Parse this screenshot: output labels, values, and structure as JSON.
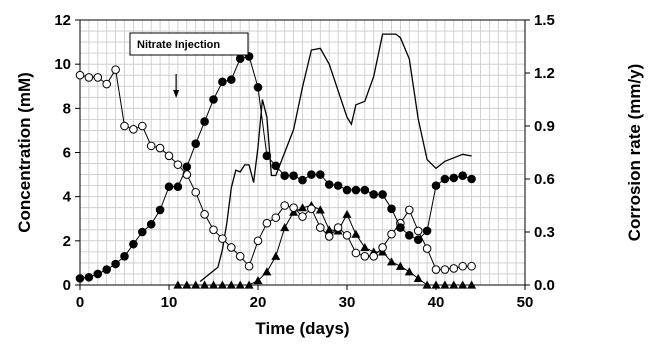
{
  "chart_data": {
    "type": "line",
    "xlabel": "Time (days)",
    "ylabel": "Concentration (mM)",
    "y2label": "Corrosion rate (mm/y)",
    "xlim": [
      0,
      50
    ],
    "ylim": [
      0,
      12
    ],
    "y2lim": [
      0,
      1.5
    ],
    "xticks": [
      0,
      10,
      20,
      30,
      40,
      50
    ],
    "yticks": [
      0,
      2,
      4,
      6,
      8,
      10,
      12
    ],
    "y2ticks": [
      "0.0",
      "0.3",
      "0.6",
      "0.9",
      "1.2",
      "1.5"
    ],
    "grid": true,
    "annotation": {
      "text": "Nitrate Injection",
      "arrow_x": 10.8
    },
    "series": [
      {
        "marker": "filled-circle",
        "axis": "left",
        "x": [
          0,
          1,
          2,
          3,
          4,
          5,
          6,
          7,
          8,
          9,
          10,
          11,
          12,
          13,
          14,
          15,
          16,
          17,
          18,
          19,
          20,
          21,
          22,
          23,
          24,
          25,
          26,
          27,
          28,
          29,
          30,
          31,
          32,
          33,
          34,
          35,
          36,
          37,
          38,
          39,
          40,
          41,
          42,
          43,
          44
        ],
        "y": [
          0.3,
          0.35,
          0.5,
          0.7,
          0.95,
          1.3,
          1.85,
          2.4,
          2.75,
          3.4,
          4.45,
          4.45,
          5.35,
          6.4,
          7.4,
          8.4,
          9.2,
          9.3,
          10.25,
          10.35,
          8.95,
          5.85,
          5.4,
          4.95,
          4.95,
          4.75,
          5.0,
          5.0,
          4.55,
          4.5,
          4.3,
          4.3,
          4.3,
          4.1,
          4.1,
          3.45,
          2.6,
          2.25,
          2.05,
          2.45,
          4.5,
          4.8,
          4.85,
          4.95,
          4.8
        ]
      },
      {
        "marker": "open-circle",
        "axis": "left",
        "x": [
          0,
          1,
          2,
          3,
          4,
          5,
          6,
          7,
          8,
          9,
          10,
          11,
          12,
          13,
          14,
          15,
          16,
          17,
          18,
          19,
          20,
          21,
          22,
          23,
          24,
          25,
          26,
          27,
          28,
          29,
          30,
          31,
          32,
          33,
          34,
          35,
          36,
          37,
          38,
          39,
          40,
          41,
          42,
          43,
          44
        ],
        "y": [
          9.5,
          9.4,
          9.4,
          9.1,
          9.75,
          7.2,
          7.05,
          7.2,
          6.3,
          6.2,
          5.85,
          5.45,
          5.0,
          4.2,
          3.2,
          2.5,
          2.1,
          1.7,
          1.3,
          0.85,
          2.0,
          2.8,
          3.05,
          3.6,
          3.5,
          3.1,
          3.45,
          2.6,
          2.2,
          2.6,
          2.25,
          1.45,
          1.3,
          1.3,
          1.7,
          2.3,
          2.8,
          3.4,
          2.45,
          1.65,
          0.7,
          0.7,
          0.75,
          0.85,
          0.85
        ]
      },
      {
        "marker": "filled-triangle",
        "axis": "left",
        "x": [
          11,
          12,
          13,
          14,
          15,
          16,
          17,
          18,
          19,
          20,
          21,
          22,
          23,
          24,
          25,
          26,
          27,
          28,
          29,
          30,
          31,
          32,
          33,
          34,
          35,
          36,
          37,
          38,
          39,
          40,
          41,
          42,
          43,
          44
        ],
        "y": [
          0,
          0,
          0,
          0,
          0,
          0,
          0,
          0,
          0,
          0.2,
          0.6,
          1.3,
          2.6,
          3.3,
          3.5,
          3.6,
          3.4,
          2.5,
          2.45,
          3.2,
          2.3,
          1.7,
          1.5,
          1.5,
          1.05,
          0.85,
          0.6,
          0.3,
          0.0,
          0.0,
          0.0,
          0.0,
          0.0,
          0.0
        ]
      },
      {
        "marker": "none",
        "axis": "right",
        "x": [
          13.5,
          14.5,
          15.5,
          16,
          16.5,
          17,
          17.5,
          18,
          18.5,
          19,
          19.5,
          20,
          20.5,
          21,
          21.5,
          22,
          23,
          24,
          25,
          26,
          27,
          28,
          29,
          30,
          30.5,
          31,
          32,
          33,
          34,
          35,
          35.5,
          36,
          37,
          38,
          39,
          40,
          41,
          42,
          43,
          44
        ],
        "y": [
          0.02,
          0.06,
          0.1,
          0.2,
          0.35,
          0.55,
          0.65,
          0.64,
          0.68,
          0.68,
          0.58,
          0.78,
          1.05,
          0.95,
          0.62,
          0.62,
          0.75,
          0.88,
          1.12,
          1.33,
          1.34,
          1.25,
          1.1,
          0.95,
          0.91,
          1.02,
          1.04,
          1.18,
          1.42,
          1.42,
          1.42,
          1.4,
          1.28,
          0.94,
          0.71,
          0.66,
          0.7,
          0.72,
          0.74,
          0.73
        ]
      }
    ]
  }
}
